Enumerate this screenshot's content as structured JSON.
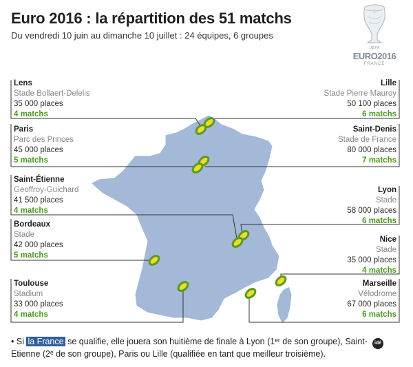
{
  "header": {
    "title": "Euro 2016 : la répartition des 51 matchs",
    "subtitle": "Du vendredi 10 juin au dimanche 10 juillet : 24 équipes, 6 groupes"
  },
  "logo": {
    "uefa": "UEFA",
    "brand": "EURO2016",
    "country": "FRANCE"
  },
  "venues": [
    {
      "city": "Lens",
      "stadium": "Stade Bollaert-Delelis",
      "places": "35 000 places",
      "matches": "4 matchs",
      "side": "left"
    },
    {
      "city": "Paris",
      "stadium": "Parc des Princes",
      "places": "45 000 places",
      "matches": "5 matchs",
      "side": "left"
    },
    {
      "city": "Saint-Étienne",
      "stadium": "Geoffroy-Guichard",
      "places": "41 500 places",
      "matches": "4 matchs",
      "side": "left"
    },
    {
      "city": "Bordeaux",
      "stadium": "Stade",
      "places": "42 000 places",
      "matches": "5 matchs",
      "side": "left"
    },
    {
      "city": "Toulouse",
      "stadium": "Stadium",
      "places": "33 000 places",
      "matches": "4 matchs",
      "side": "left"
    },
    {
      "city": "Lille",
      "stadium": "Stade Pierre Mauroy",
      "places": "50 100 places",
      "matches": "6 matchs",
      "side": "right"
    },
    {
      "city": "Saint-Denis",
      "stadium": "Stade de France",
      "places": "80 000 places",
      "matches": "7 matchs",
      "side": "right"
    },
    {
      "city": "Lyon",
      "stadium": "Stade",
      "places": "58 000 places",
      "matches": "6 matchs",
      "side": "right"
    },
    {
      "city": "Nice",
      "stadium": "Stade",
      "places": "35 000 places",
      "matches": "4 matchs",
      "side": "right"
    },
    {
      "city": "Marseille",
      "stadium": "Vélodrome",
      "places": "67 000 places",
      "matches": "6 matchs",
      "side": "right"
    }
  ],
  "note": {
    "bullet": "•",
    "before": "Si",
    "highlight": "la France",
    "after": "se qualifie, elle jouera son huitième de finale à Lyon (1ᵉʳ de son groupe), Saint-Etienne (2ᵉ de son groupe), Paris ou Lille (qualifiée en tant que meilleur troisième)."
  },
  "credit": "idé",
  "colors": {
    "land": "#a4b8d8",
    "stadium_fill": "#f2d92c",
    "stadium_ring": "#5a9a22",
    "matches_text": "#4a9a1f",
    "highlight": "#2f5f9e"
  }
}
